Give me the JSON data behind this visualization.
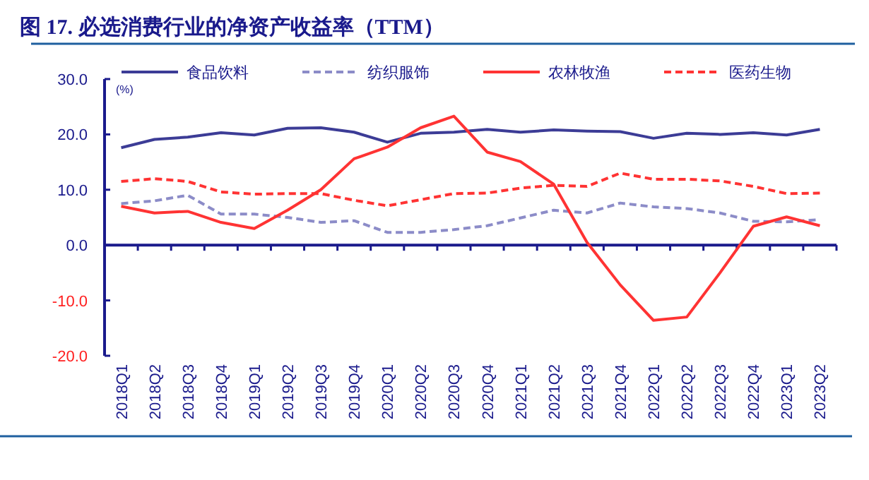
{
  "chart_data": {
    "type": "line",
    "title": "图 17. 必选消费行业的净资产收益率（TTM）",
    "ylabel": "(%)",
    "categories": [
      "2018Q1",
      "2018Q2",
      "2018Q3",
      "2018Q4",
      "2019Q1",
      "2019Q2",
      "2019Q3",
      "2019Q4",
      "2020Q1",
      "2020Q2",
      "2020Q3",
      "2020Q4",
      "2021Q1",
      "2021Q2",
      "2021Q3",
      "2021Q4",
      "2022Q1",
      "2022Q2",
      "2022Q3",
      "2022Q4",
      "2023Q1",
      "2023Q2"
    ],
    "series": [
      {
        "name": "食品饮料",
        "color": "#3c3c96",
        "line_style": "solid",
        "values": [
          17.6,
          19.1,
          19.5,
          20.3,
          19.9,
          21.1,
          21.2,
          20.4,
          18.6,
          20.2,
          20.4,
          20.9,
          20.4,
          20.8,
          20.6,
          20.5,
          19.3,
          20.2,
          20.0,
          20.3,
          19.9,
          20.9
        ]
      },
      {
        "name": "纺织服饰",
        "color": "#8c8cc8",
        "line_style": "dashed",
        "values": [
          7.5,
          8.0,
          9.0,
          5.6,
          5.6,
          5.0,
          4.1,
          4.4,
          2.3,
          2.3,
          2.8,
          3.5,
          4.9,
          6.3,
          5.8,
          7.6,
          6.9,
          6.6,
          5.8,
          4.3,
          4.2,
          4.6
        ]
      },
      {
        "name": "农林牧渔",
        "color": "#ff3333",
        "line_style": "solid",
        "values": [
          7.0,
          5.8,
          6.1,
          4.1,
          3.0,
          6.3,
          10.0,
          15.6,
          17.7,
          21.2,
          23.3,
          16.8,
          15.1,
          11.0,
          0.5,
          -7.2,
          -13.6,
          -13.0,
          -5.0,
          3.4,
          5.1,
          3.5
        ]
      },
      {
        "name": "医药生物",
        "color": "#ff3333",
        "line_style": "dashed",
        "values": [
          11.5,
          12.0,
          11.5,
          9.6,
          9.2,
          9.3,
          9.3,
          8.1,
          7.1,
          8.2,
          9.3,
          9.4,
          10.3,
          10.8,
          10.6,
          13.0,
          11.9,
          11.9,
          11.6,
          10.6,
          9.3,
          9.4
        ]
      }
    ],
    "ylim": [
      -20,
      30
    ],
    "yticks": [
      {
        "value": -20,
        "label": "-20.0"
      },
      {
        "value": -10,
        "label": "-10.0"
      },
      {
        "value": 0,
        "label": "0.0"
      },
      {
        "value": 10,
        "label": "10.0"
      },
      {
        "value": 20,
        "label": "20.0"
      },
      {
        "value": 30,
        "label": "30.0"
      }
    ],
    "ref_lines": [
      {
        "axis": "y",
        "value": 0,
        "color": "#1a1a8c"
      }
    ],
    "grid": false,
    "legend": "top",
    "marker": "none"
  }
}
